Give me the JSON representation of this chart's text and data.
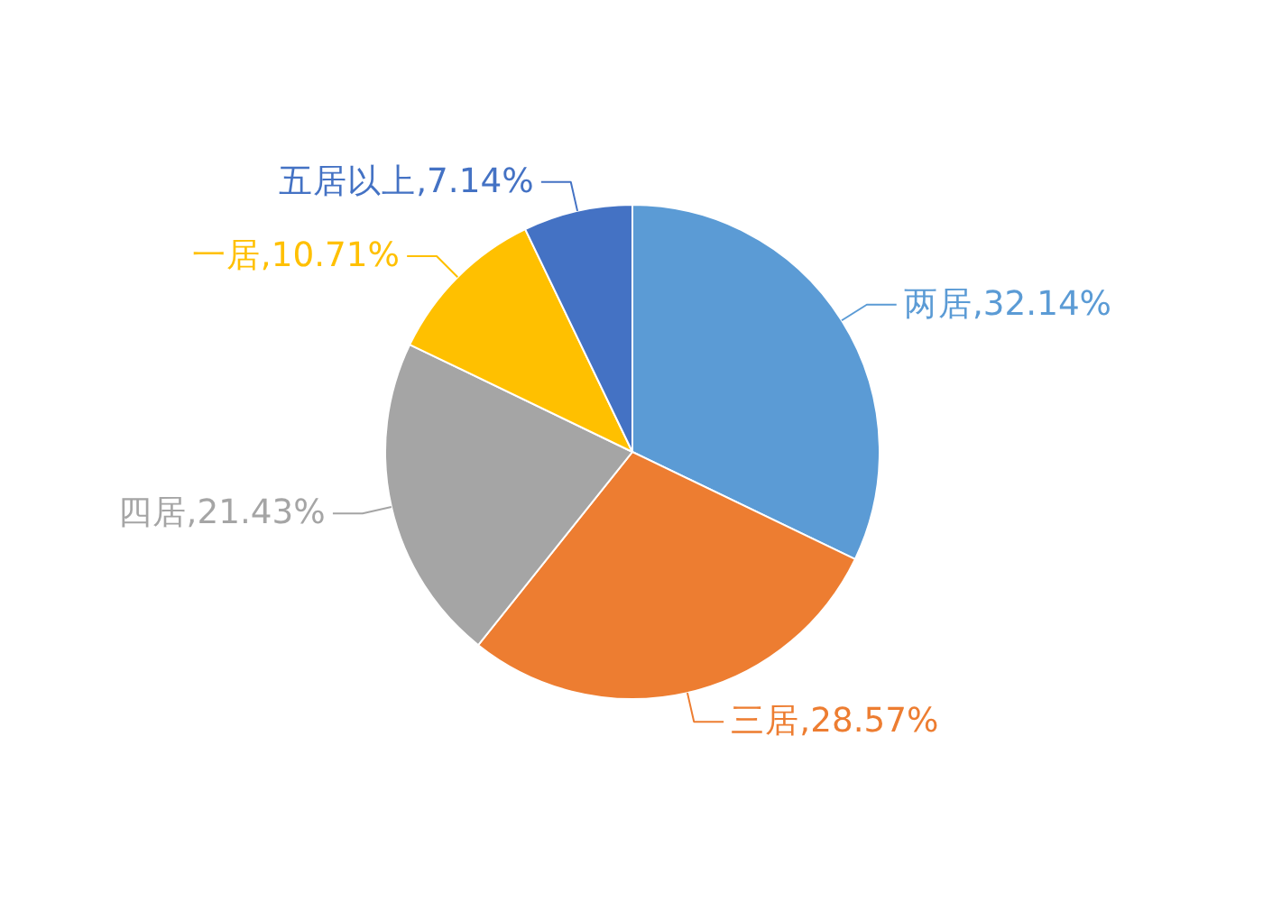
{
  "chart_data": {
    "type": "pie",
    "categories": [
      "两居",
      "三居",
      "四居",
      "一居",
      "五居以上"
    ],
    "values": [
      32.14,
      28.57,
      21.43,
      10.71,
      7.14
    ],
    "value_labels": [
      "32.14%",
      "28.57%",
      "21.43%",
      "10.71%",
      "7.14%"
    ],
    "colors": [
      "#5b9bd5",
      "#ed7d31",
      "#a5a5a5",
      "#ffc000",
      "#4472c4"
    ]
  }
}
